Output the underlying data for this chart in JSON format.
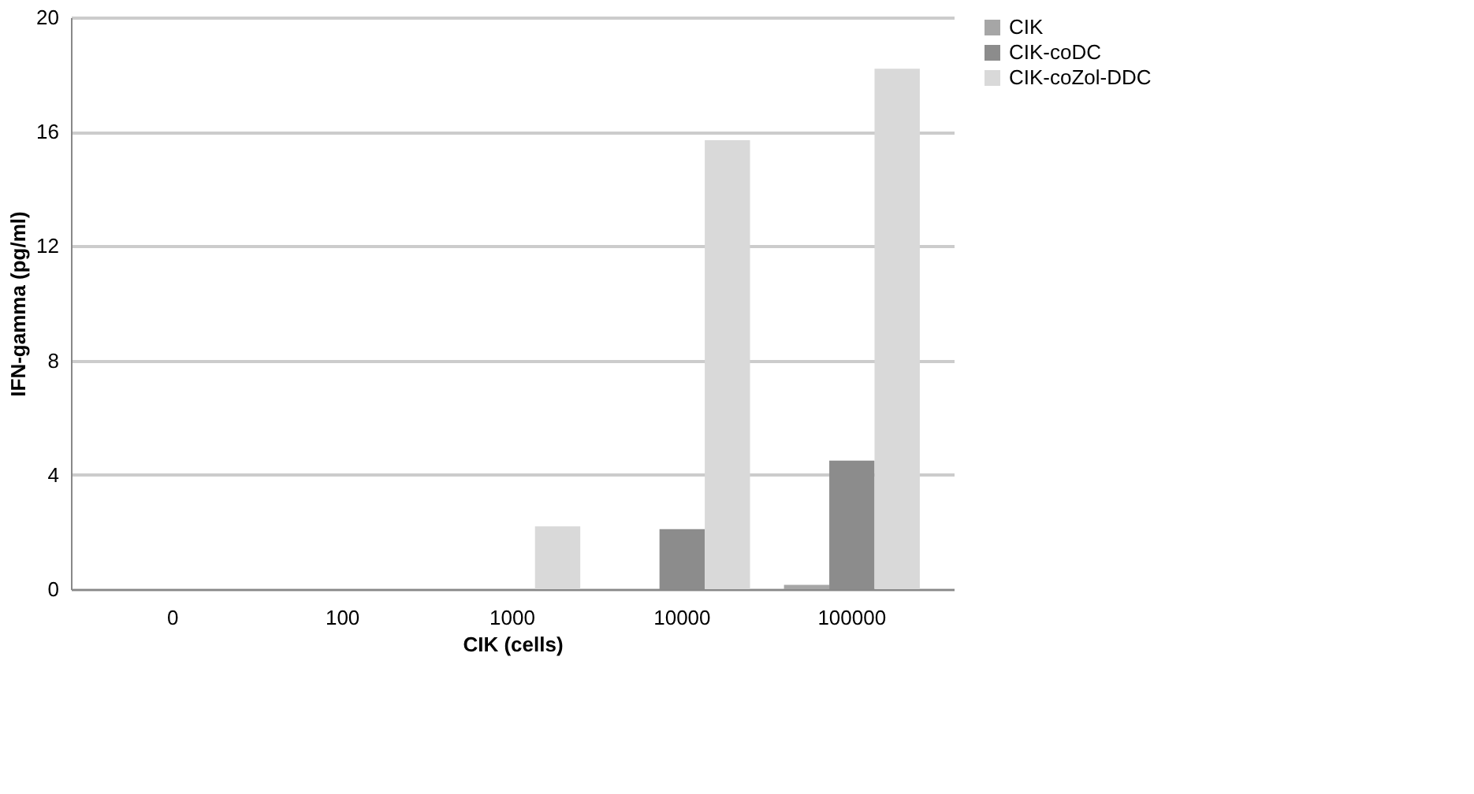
{
  "chart_data": {
    "type": "bar",
    "xlabel": "CIK (cells)",
    "ylabel": "IFN-gamma (pg/ml)",
    "categories": [
      "0",
      "100",
      "1000",
      "10000",
      "100000"
    ],
    "series": [
      {
        "name": "CIK",
        "color": "#a6a6a6",
        "values": [
          0,
          0,
          0,
          0,
          0.15
        ]
      },
      {
        "name": "CIK-coDC",
        "color": "#8c8c8c",
        "values": [
          0,
          0,
          0,
          2.1,
          4.5
        ]
      },
      {
        "name": "CIK-coZol-DDC",
        "color": "#d9d9d9",
        "values": [
          0,
          0,
          2.2,
          15.7,
          18.2
        ]
      }
    ],
    "ylim": [
      0,
      20
    ],
    "yticks": [
      0,
      4,
      8,
      12,
      16,
      20
    ],
    "grid": "y",
    "legend": "right"
  }
}
